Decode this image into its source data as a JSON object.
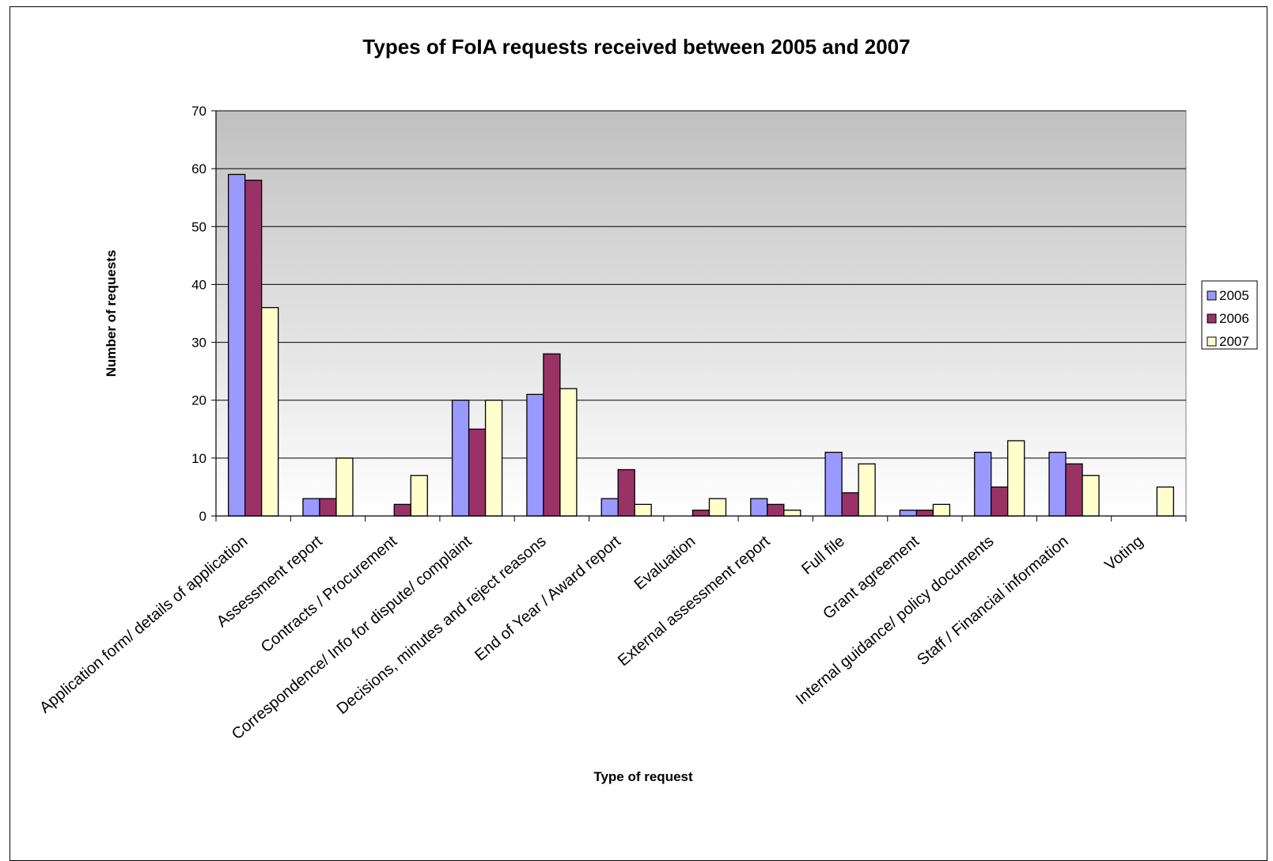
{
  "chart_data": {
    "type": "bar",
    "title": "Types of FoIA requests received between 2005 and 2007",
    "xlabel": "Type of request",
    "ylabel": "Number of requests",
    "ylim": [
      0,
      70
    ],
    "yticks": [
      0,
      10,
      20,
      30,
      40,
      50,
      60,
      70
    ],
    "grid": true,
    "legend_position": "right",
    "categories": [
      "Application form/ details of application",
      "Assessment report",
      "Contracts / Procurement",
      "Correspondence/ Info for dispute/ complaint",
      "Decisions, minutes and reject reasons",
      "End of Year / Award report",
      "Evaluation",
      "External assessment report",
      "Full file",
      "Grant agreement",
      "Internal guidance/ policy documents",
      "Staff / Financial information",
      "Voting"
    ],
    "series": [
      {
        "name": "2005",
        "color": "#9999ff",
        "values": [
          59,
          3,
          0,
          20,
          21,
          3,
          0,
          3,
          11,
          1,
          11,
          11,
          0
        ]
      },
      {
        "name": "2006",
        "color": "#993366",
        "values": [
          58,
          3,
          2,
          15,
          28,
          8,
          1,
          2,
          4,
          1,
          5,
          9,
          0
        ]
      },
      {
        "name": "2007",
        "color": "#ffffcc",
        "values": [
          36,
          10,
          7,
          20,
          22,
          2,
          3,
          1,
          9,
          2,
          13,
          7,
          5
        ]
      }
    ]
  }
}
